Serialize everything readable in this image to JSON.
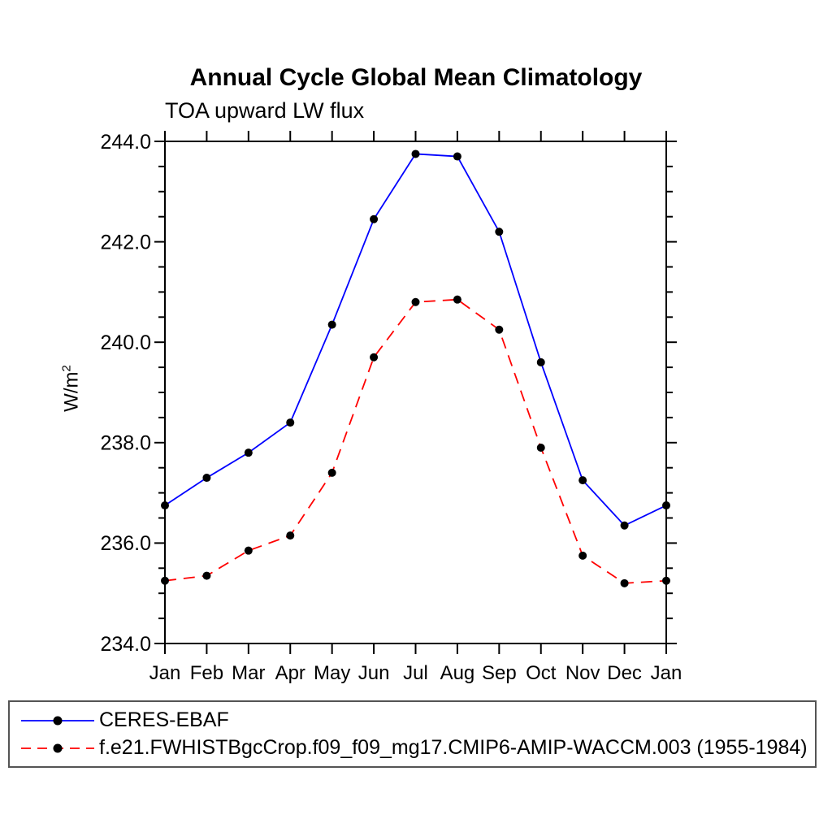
{
  "title": "Annual Cycle Global Mean Climatology",
  "subtitle": "TOA upward LW flux",
  "y_axis": {
    "label_base": "W/m",
    "label_exponent": "2"
  },
  "chart_data": {
    "type": "line",
    "title": "Annual Cycle Global Mean Climatology",
    "subtitle": "TOA upward LW flux",
    "xlabel": "",
    "ylabel": "W/m^2",
    "ylim": [
      234.0,
      244.0
    ],
    "ytick_major": 2.0,
    "ytick_minor": 0.5,
    "ytick_label_decimals": 1,
    "grid": false,
    "legend_position": "bottom-left-box",
    "categories": [
      "Jan",
      "Feb",
      "Mar",
      "Apr",
      "May",
      "Jun",
      "Jul",
      "Aug",
      "Sep",
      "Oct",
      "Nov",
      "Dec",
      "Jan"
    ],
    "series": [
      {
        "name": "CERES-EBAF",
        "color": "#0000ff",
        "line_style": "solid",
        "marker": "filled-circle",
        "marker_color": "#000000",
        "values": [
          236.75,
          237.3,
          237.8,
          238.4,
          240.35,
          242.45,
          243.75,
          243.7,
          242.2,
          239.6,
          237.25,
          236.35,
          236.75
        ]
      },
      {
        "name": "f.e21.FWHISTBgcCrop.f09_f09_mg17.CMIP6-AMIP-WACCM.003 (1955-1984)",
        "color": "#ff0000",
        "line_style": "dashed",
        "marker": "filled-circle",
        "marker_color": "#000000",
        "values": [
          235.25,
          235.35,
          235.85,
          236.15,
          237.4,
          239.7,
          240.8,
          240.85,
          240.25,
          237.9,
          235.75,
          235.2,
          235.25
        ]
      }
    ]
  }
}
